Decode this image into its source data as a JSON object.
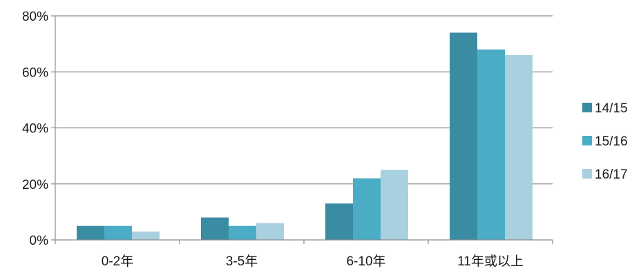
{
  "chart_data": {
    "type": "bar",
    "categories": [
      "0-2年",
      "3-5年",
      "6-10年",
      "11年或以上"
    ],
    "series": [
      {
        "name": "14/15",
        "color": "#3a8ca3",
        "values": [
          5,
          8,
          13,
          74
        ]
      },
      {
        "name": "15/16",
        "color": "#4bacc6",
        "values": [
          5,
          5,
          22,
          68
        ]
      },
      {
        "name": "16/17",
        "color": "#a9d0de",
        "values": [
          3,
          6,
          25,
          66
        ]
      }
    ],
    "yticks": [
      0,
      20,
      40,
      60,
      80
    ],
    "ytick_labels": [
      "0%",
      "20%",
      "40%",
      "60%",
      "80%"
    ],
    "ylim": [
      0,
      80
    ],
    "grid": true,
    "legend": "right"
  }
}
